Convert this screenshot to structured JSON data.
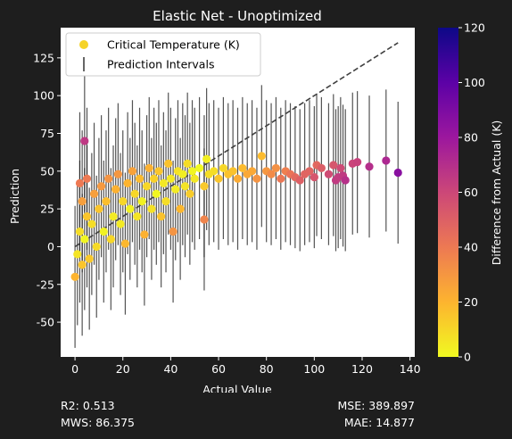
{
  "chart_data": {
    "type": "scatter",
    "title": "Elastic Net - Unoptimized",
    "xlabel": "Actual Value",
    "ylabel": "Prediction",
    "xlim": [
      -6,
      142
    ],
    "ylim": [
      -73,
      145
    ],
    "xticks": [
      0,
      20,
      40,
      60,
      80,
      100,
      120,
      140
    ],
    "yticks": [
      -50,
      -25,
      0,
      25,
      50,
      75,
      100,
      125
    ],
    "grid": false,
    "legend_position": "top-left",
    "legend": [
      {
        "label": "Critical Temperature (K)",
        "marker": "circle",
        "color": "#f5d327"
      },
      {
        "label": "Prediction Intervals",
        "marker": "vline",
        "color": "#555555"
      }
    ],
    "reference_line": {
      "style": "dashed",
      "color": "#404040",
      "x": [
        0,
        135
      ],
      "y": [
        0,
        135
      ]
    },
    "colorbar": {
      "label": "Difference from Actual (K)",
      "range": [
        0,
        120
      ],
      "ticks": [
        0,
        20,
        40,
        60,
        80,
        100,
        120
      ],
      "colormap": "plasma_r",
      "stops": [
        "#f0f921",
        "#fdb42f",
        "#ed7953",
        "#cc4778",
        "#9c179e",
        "#5c01a6",
        "#0d0887"
      ]
    },
    "interval_half_width": 47,
    "scatter_points": [
      {
        "x": 0,
        "y": -20
      },
      {
        "x": 1,
        "y": -5
      },
      {
        "x": 2,
        "y": 10
      },
      {
        "x": 2,
        "y": 42
      },
      {
        "x": 3,
        "y": -12
      },
      {
        "x": 3,
        "y": 30
      },
      {
        "x": 4,
        "y": 5
      },
      {
        "x": 4,
        "y": 70
      },
      {
        "x": 5,
        "y": 20
      },
      {
        "x": 5,
        "y": 45
      },
      {
        "x": 6,
        "y": -8
      },
      {
        "x": 7,
        "y": 15
      },
      {
        "x": 8,
        "y": 35
      },
      {
        "x": 9,
        "y": 0
      },
      {
        "x": 10,
        "y": 25
      },
      {
        "x": 11,
        "y": 40
      },
      {
        "x": 12,
        "y": 10
      },
      {
        "x": 13,
        "y": 30
      },
      {
        "x": 14,
        "y": 45
      },
      {
        "x": 15,
        "y": 5
      },
      {
        "x": 16,
        "y": 20
      },
      {
        "x": 17,
        "y": 38
      },
      {
        "x": 18,
        "y": 48
      },
      {
        "x": 19,
        "y": 15
      },
      {
        "x": 20,
        "y": 30
      },
      {
        "x": 21,
        "y": 2
      },
      {
        "x": 22,
        "y": 42
      },
      {
        "x": 23,
        "y": 25
      },
      {
        "x": 24,
        "y": 50
      },
      {
        "x": 25,
        "y": 35
      },
      {
        "x": 26,
        "y": 20
      },
      {
        "x": 27,
        "y": 45
      },
      {
        "x": 28,
        "y": 30
      },
      {
        "x": 29,
        "y": 8
      },
      {
        "x": 30,
        "y": 40
      },
      {
        "x": 31,
        "y": 52
      },
      {
        "x": 32,
        "y": 25
      },
      {
        "x": 33,
        "y": 45
      },
      {
        "x": 34,
        "y": 35
      },
      {
        "x": 35,
        "y": 50
      },
      {
        "x": 36,
        "y": 20
      },
      {
        "x": 37,
        "y": 42
      },
      {
        "x": 38,
        "y": 30
      },
      {
        "x": 39,
        "y": 55
      },
      {
        "x": 40,
        "y": 45
      },
      {
        "x": 41,
        "y": 10
      },
      {
        "x": 42,
        "y": 38
      },
      {
        "x": 43,
        "y": 50
      },
      {
        "x": 44,
        "y": 25
      },
      {
        "x": 45,
        "y": 48
      },
      {
        "x": 46,
        "y": 40
      },
      {
        "x": 47,
        "y": 55
      },
      {
        "x": 48,
        "y": 35
      },
      {
        "x": 49,
        "y": 50
      },
      {
        "x": 50,
        "y": 45
      },
      {
        "x": 52,
        "y": 52
      },
      {
        "x": 54,
        "y": 40
      },
      {
        "x": 55,
        "y": 58
      },
      {
        "x": 56,
        "y": 48
      },
      {
        "x": 54,
        "y": 18
      },
      {
        "x": 58,
        "y": 50
      },
      {
        "x": 60,
        "y": 45
      },
      {
        "x": 62,
        "y": 52
      },
      {
        "x": 64,
        "y": 48
      },
      {
        "x": 66,
        "y": 50
      },
      {
        "x": 68,
        "y": 45
      },
      {
        "x": 70,
        "y": 52
      },
      {
        "x": 72,
        "y": 48
      },
      {
        "x": 74,
        "y": 50
      },
      {
        "x": 76,
        "y": 45
      },
      {
        "x": 78,
        "y": 60
      },
      {
        "x": 80,
        "y": 50
      },
      {
        "x": 82,
        "y": 48
      },
      {
        "x": 84,
        "y": 52
      },
      {
        "x": 86,
        "y": 45
      },
      {
        "x": 88,
        "y": 50
      },
      {
        "x": 90,
        "y": 48
      },
      {
        "x": 92,
        "y": 46
      },
      {
        "x": 94,
        "y": 44
      },
      {
        "x": 96,
        "y": 48
      },
      {
        "x": 98,
        "y": 50
      },
      {
        "x": 100,
        "y": 46
      },
      {
        "x": 101,
        "y": 54
      },
      {
        "x": 103,
        "y": 52
      },
      {
        "x": 106,
        "y": 48
      },
      {
        "x": 108,
        "y": 54
      },
      {
        "x": 109,
        "y": 44
      },
      {
        "x": 110,
        "y": 46
      },
      {
        "x": 111,
        "y": 52
      },
      {
        "x": 112,
        "y": 47
      },
      {
        "x": 113,
        "y": 44
      },
      {
        "x": 116,
        "y": 55
      },
      {
        "x": 118,
        "y": 56
      },
      {
        "x": 123,
        "y": 53
      },
      {
        "x": 130,
        "y": 57
      },
      {
        "x": 135,
        "y": 49
      }
    ]
  },
  "metrics": {
    "left": [
      {
        "label": "R2: ",
        "value": "0.513"
      },
      {
        "label": "MWS: ",
        "value": "86.375"
      }
    ],
    "right": [
      {
        "label": "MSE: ",
        "value": "389.897"
      },
      {
        "label": "MAE: ",
        "value": "14.877"
      }
    ]
  }
}
